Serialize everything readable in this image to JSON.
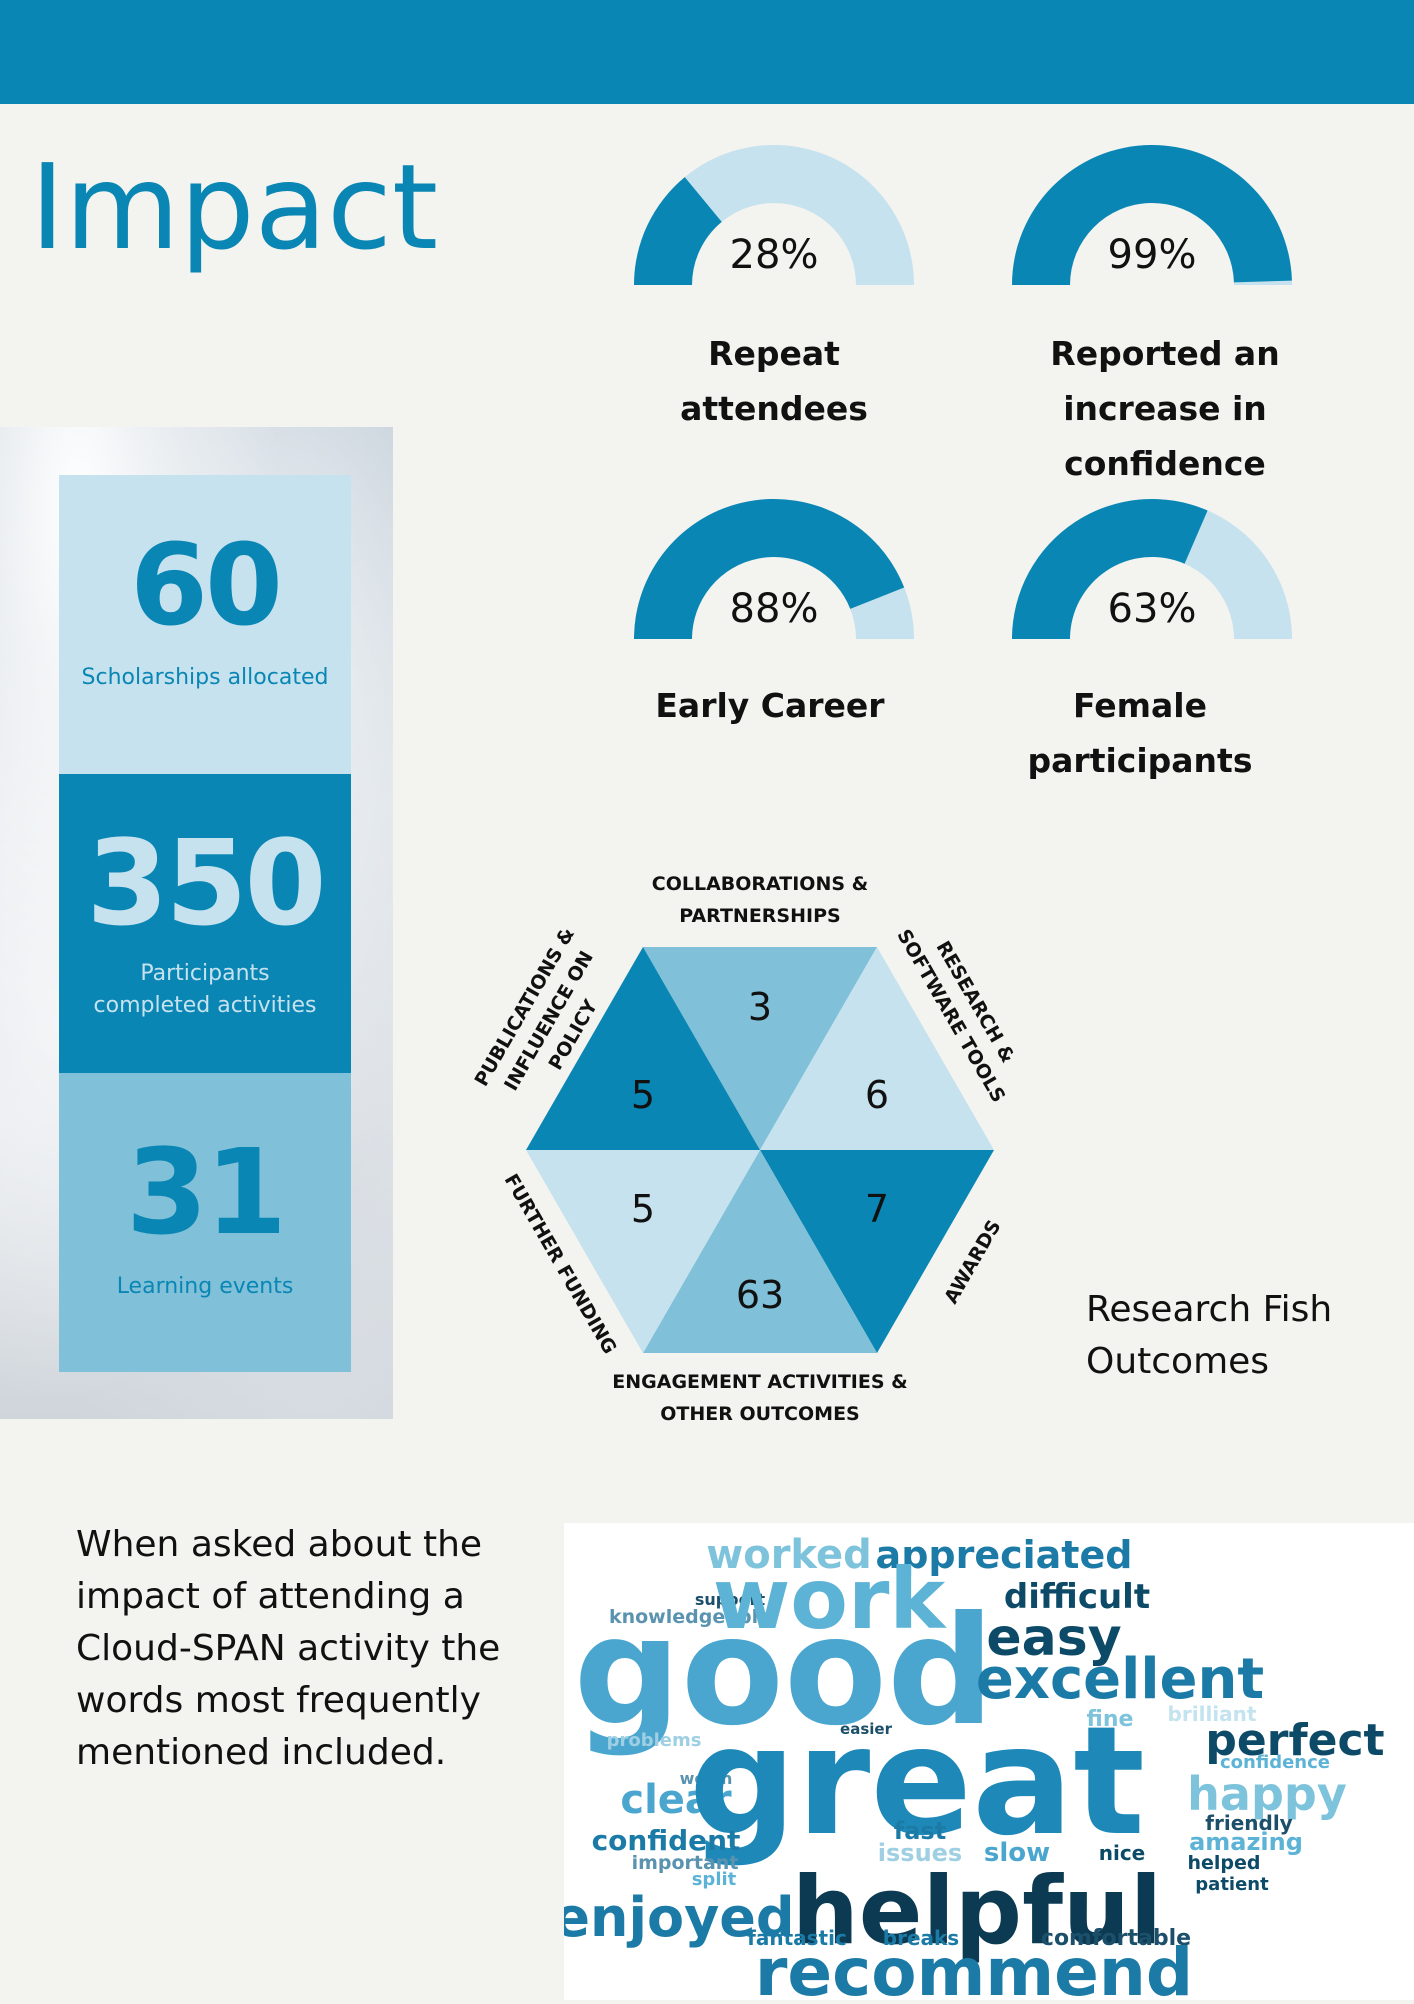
{
  "page": {
    "title": "Impact",
    "colors": {
      "primary": "#0a86b4",
      "light": "#c6e2ee",
      "medium": "#80c1d9",
      "dark": "#0c4a67",
      "background": "#f3f3ef"
    }
  },
  "stats": [
    {
      "value": "60",
      "label": "Scholarships allocated"
    },
    {
      "value": "350",
      "label": "Participants completed activities"
    },
    {
      "value": "31",
      "label": "Learning events"
    }
  ],
  "gauges": [
    {
      "percent": 28,
      "label": "28%",
      "caption": "Repeat attendees"
    },
    {
      "percent": 99,
      "label": "99%",
      "caption": "Reported an increase in confidence"
    },
    {
      "percent": 88,
      "label": "88%",
      "caption": "Early Career"
    },
    {
      "percent": 63,
      "label": "63%",
      "caption": "Female participants"
    }
  ],
  "research_fish": {
    "title": "Research Fish Outcomes",
    "segments": [
      {
        "label": "COLLABORATIONS & PARTNERSHIPS",
        "value": "3"
      },
      {
        "label": "RESEARCH & SOFTWARE TOOLS",
        "value": "6"
      },
      {
        "label": "AWARDS",
        "value": "7"
      },
      {
        "label": "ENGAGEMENT ACTIVITIES & OTHER OUTCOMES",
        "value": "63"
      },
      {
        "label": "FURTHER FUNDING",
        "value": "5"
      },
      {
        "label": "PUBLICATIONS & INFLUENCE ON POLICY",
        "value": "5"
      }
    ]
  },
  "word_cloud": {
    "intro": "When asked about the impact of attending a Cloud-SPAN activity the words most frequently mentioned included.",
    "words": [
      "worked",
      "appreciated",
      "support",
      "knowledgeable",
      "work",
      "difficult",
      "easy",
      "good",
      "excellent",
      "problems",
      "easier",
      "fine",
      "brilliant",
      "perfect",
      "confidence",
      "worth",
      "clear",
      "great",
      "happy",
      "friendly",
      "fast",
      "issues",
      "slow",
      "nice",
      "amazing",
      "confident",
      "important",
      "split",
      "helped",
      "patient",
      "enjoyed",
      "helpful",
      "fantastic",
      "breaks",
      "comfortable",
      "recommend"
    ]
  }
}
